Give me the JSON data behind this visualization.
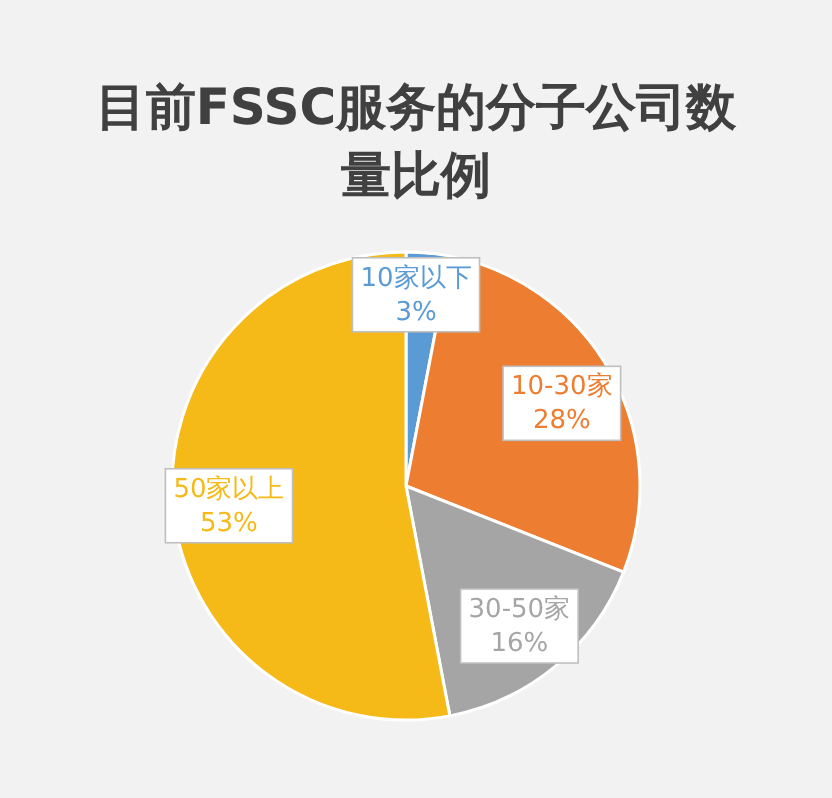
{
  "chart_data": {
    "type": "pie",
    "title": "目前FSSC服务的分子公司数量比例",
    "categories": [
      "10家以下",
      "10-30家",
      "30-50家",
      "50家以上"
    ],
    "values": [
      3,
      28,
      16,
      53
    ],
    "value_labels": [
      "3%",
      "28%",
      "16%",
      "53%"
    ],
    "colors": [
      "#5b9bd5",
      "#ed7d31",
      "#a5a5a5",
      "#f5b918"
    ],
    "legend": false
  }
}
